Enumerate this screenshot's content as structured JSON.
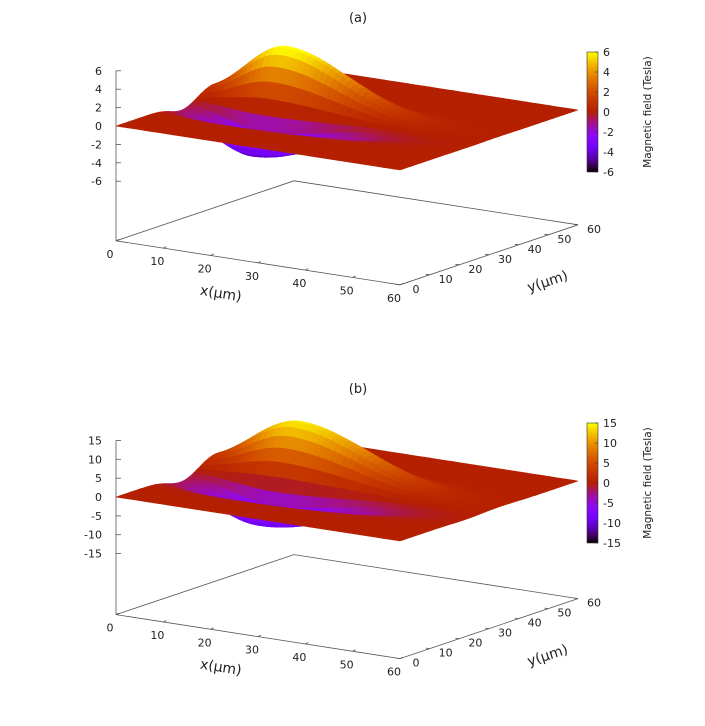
{
  "chart_data": [
    {
      "type": "surface",
      "title": "(a)",
      "xlabel": "x(μm)",
      "ylabel": "y(μm)",
      "xlim": [
        0,
        60
      ],
      "ylim": [
        0,
        60
      ],
      "zlim": [
        -6,
        6
      ],
      "x_ticks": [
        "0",
        "10",
        "20",
        "30",
        "40",
        "50",
        "60"
      ],
      "y_ticks": [
        "0",
        "10",
        "20",
        "30",
        "40",
        "50",
        "60"
      ],
      "z_ticks": [
        "6",
        "4",
        "2",
        "0",
        "-2",
        "-4",
        "-6"
      ],
      "z_peak_max": 6,
      "z_peak_min": -4,
      "colorbar": {
        "label": "Magnetic field (Tesla)",
        "range": [
          -6,
          6
        ],
        "ticks": [
          "6",
          "4",
          "2",
          "0",
          "-2",
          "-4",
          "-6"
        ],
        "palette": [
          "#000000",
          "#7f00ff",
          "#b42000",
          "#ffff00"
        ]
      }
    },
    {
      "type": "surface",
      "title": "(b)",
      "xlabel": "x(μm)",
      "ylabel": "y(μm)",
      "xlim": [
        0,
        60
      ],
      "ylim": [
        0,
        60
      ],
      "zlim": [
        -15,
        15
      ],
      "x_ticks": [
        "0",
        "10",
        "20",
        "30",
        "40",
        "50",
        "60"
      ],
      "y_ticks": [
        "0",
        "10",
        "20",
        "30",
        "40",
        "50",
        "60"
      ],
      "z_ticks": [
        "15",
        "10",
        "5",
        "0",
        "-5",
        "-10",
        "-15"
      ],
      "z_peak_max": 14,
      "z_peak_min": -10,
      "colorbar": {
        "label": "Magnetic field (Tesla)",
        "range": [
          -15,
          15
        ],
        "ticks": [
          "15",
          "10",
          "5",
          "0",
          "-5",
          "-10",
          "-15"
        ],
        "palette": [
          "#000000",
          "#7f00ff",
          "#b42000",
          "#ffff00"
        ]
      }
    }
  ]
}
